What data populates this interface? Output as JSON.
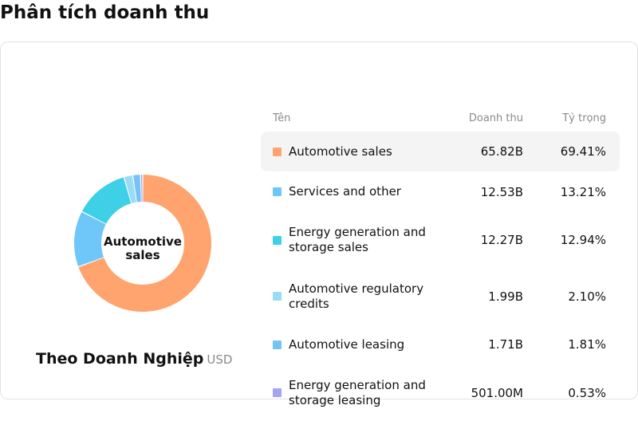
{
  "page": {
    "title": "Phân tích doanh thu"
  },
  "donut": {
    "center_label": "Automotive sales"
  },
  "caption": {
    "title": "Theo Doanh Nghiệp",
    "unit": "USD"
  },
  "table": {
    "headers": {
      "name": "Tên",
      "revenue": "Doanh thu",
      "share": "Tỷ trọng"
    },
    "rows": [
      {
        "name": "Automotive sales",
        "revenue": "65.82B",
        "share": "69.41%",
        "color": "#FFA46E",
        "active": true
      },
      {
        "name": "Services and other",
        "revenue": "12.53B",
        "share": "13.21%",
        "color": "#6EC6F9",
        "active": false
      },
      {
        "name": "Energy generation and storage sales",
        "revenue": "12.27B",
        "share": "12.94%",
        "color": "#3DD0E6",
        "active": false
      },
      {
        "name": "Automotive regulatory credits",
        "revenue": "1.99B",
        "share": "2.10%",
        "color": "#9ADCF6",
        "active": false
      },
      {
        "name": "Automotive leasing",
        "revenue": "1.71B",
        "share": "1.81%",
        "color": "#75C2F7",
        "active": false
      },
      {
        "name": "Energy generation and storage leasing",
        "revenue": "501.00M",
        "share": "0.53%",
        "color": "#A3A4F6",
        "active": false
      }
    ]
  },
  "chart_data": {
    "type": "pie",
    "categories": [
      "Automotive sales",
      "Services and other",
      "Energy generation and storage sales",
      "Automotive regulatory credits",
      "Automotive leasing",
      "Energy generation and storage leasing"
    ],
    "values": [
      69.41,
      13.21,
      12.94,
      2.1,
      1.81,
      0.53
    ],
    "colors": [
      "#FFA46E",
      "#6EC6F9",
      "#3DD0E6",
      "#9ADCF6",
      "#75C2F7",
      "#A3A4F6"
    ],
    "donut": true,
    "title": "",
    "unit": "%"
  }
}
